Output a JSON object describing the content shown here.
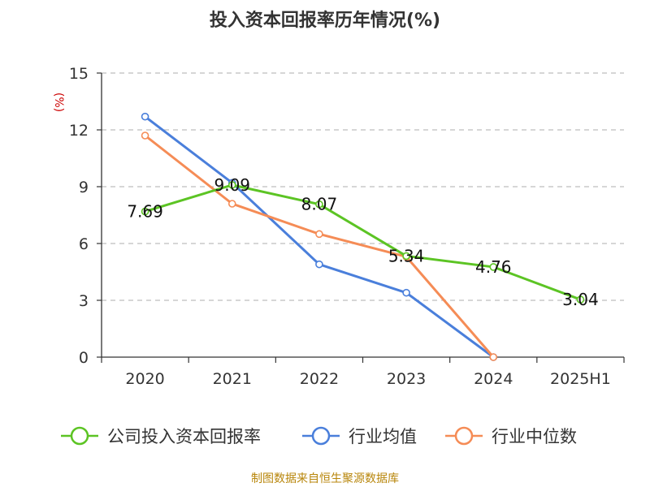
{
  "chart_data": {
    "type": "line",
    "title": "投入资本回报率历年情况(%)",
    "ylabel": "(%)",
    "xlabel": "",
    "ylim": [
      0,
      15
    ],
    "yticks": [
      0,
      3,
      6,
      9,
      12,
      15
    ],
    "grid": true,
    "legend_position": "bottom",
    "categories": [
      "2020",
      "2021",
      "2022",
      "2023",
      "2024",
      "2025H1"
    ],
    "series": [
      {
        "name": "公司投入资本回报率",
        "color": "#5cc424",
        "values": [
          7.69,
          9.09,
          8.07,
          5.34,
          4.76,
          3.04
        ],
        "labels": [
          "7.69",
          "9.09",
          "8.07",
          "5.34",
          "4.76",
          "3.04"
        ]
      },
      {
        "name": "行业均值",
        "color": "#4a7fdb",
        "values": [
          12.7,
          9.2,
          4.9,
          3.4,
          0.0,
          null
        ]
      },
      {
        "name": "行业中位数",
        "color": "#f58c56",
        "values": [
          11.7,
          8.1,
          6.5,
          5.3,
          0.0,
          null
        ]
      }
    ],
    "source": "制图数据来自恒生聚源数据库"
  }
}
